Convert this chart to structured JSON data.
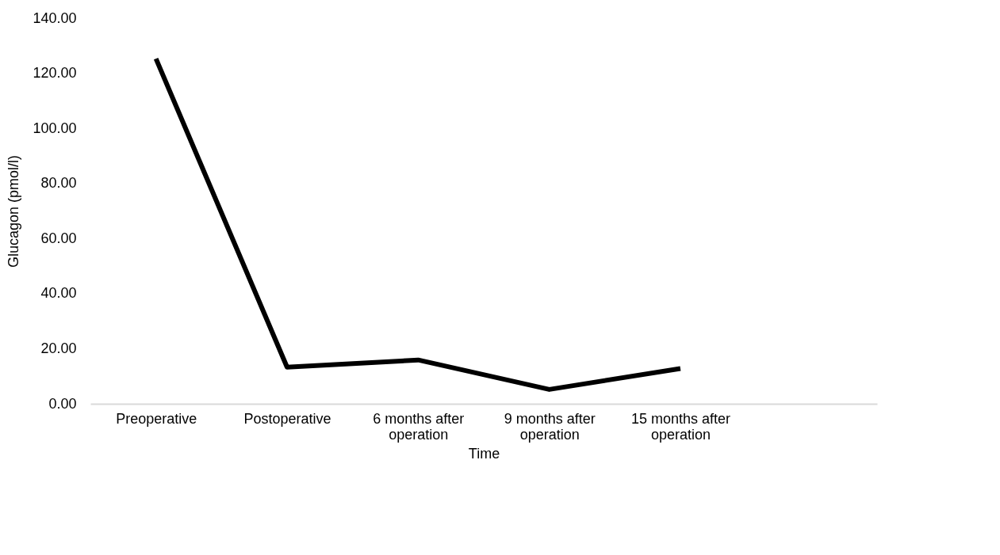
{
  "chart_data": {
    "type": "line",
    "xlabel": "Time",
    "ylabel": "Glucagon (pmol/l)",
    "categories": [
      "Preoperative",
      "Postoperative",
      "6 months after operation",
      "9 months after operation",
      "15 months after operation",
      null
    ],
    "series": [
      {
        "color": "#000000",
        "values": [
          125.3,
          13.3,
          15.9,
          5.2,
          12.8,
          null
        ]
      }
    ],
    "ylim": [
      0,
      140
    ],
    "yticks": [
      {
        "value": 0,
        "label": "0.00"
      },
      {
        "value": 20,
        "label": "20.00"
      },
      {
        "value": 40,
        "label": "40.00"
      },
      {
        "value": 60,
        "label": "60.00"
      },
      {
        "value": 80,
        "label": "80.00"
      },
      {
        "value": 100,
        "label": "100.00"
      },
      {
        "value": 120,
        "label": "120.00"
      },
      {
        "value": 140,
        "label": "140.00"
      }
    ],
    "grid": false,
    "marker": "none",
    "line_style": "solid"
  }
}
